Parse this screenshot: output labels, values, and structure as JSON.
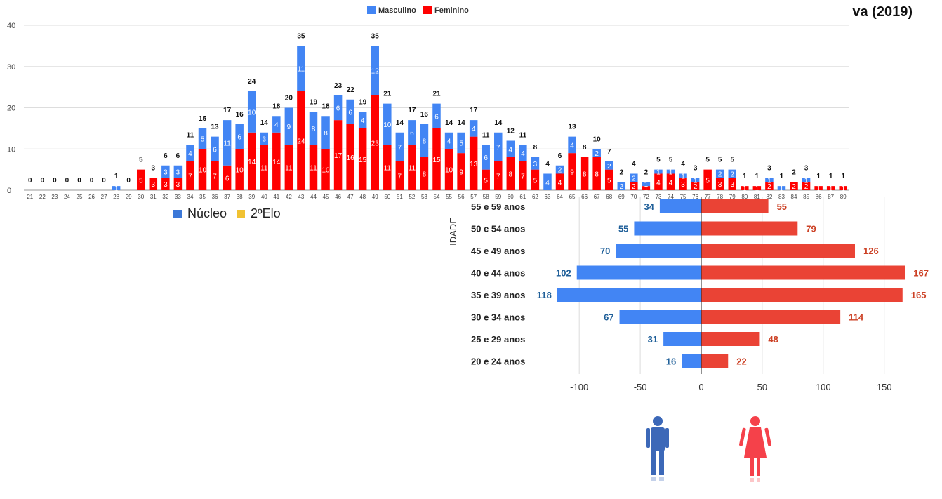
{
  "header_fragment": "va (2019)",
  "secondary_legend": {
    "items": [
      {
        "label": "Núcleo",
        "color": "#3c78d8"
      },
      {
        "label": "2ºElo",
        "color": "#f1c232"
      }
    ]
  },
  "colors": {
    "masculino": "#4285f4",
    "feminino": "#ff0000",
    "pyramid_m": "#4285f4",
    "pyramid_f": "#ea4335",
    "pyramid_m_label": "#1f5f99",
    "pyramid_f_label": "#cc4125"
  },
  "icons": [
    "male-person-icon",
    "female-person-icon"
  ],
  "chart_data": [
    {
      "type": "bar",
      "stacked": true,
      "legend_position": "top",
      "categories": [
        "21",
        "22",
        "23",
        "24",
        "25",
        "26",
        "27",
        "28",
        "29",
        "30",
        "31",
        "32",
        "33",
        "34",
        "35",
        "36",
        "37",
        "38",
        "39",
        "40",
        "41",
        "42",
        "43",
        "44",
        "45",
        "46",
        "47",
        "48",
        "49",
        "50",
        "51",
        "52",
        "53",
        "54",
        "55",
        "56",
        "57",
        "58",
        "59",
        "60",
        "61",
        "62",
        "63",
        "64",
        "65",
        "66",
        "67",
        "68",
        "69",
        "70",
        "72",
        "73",
        "74",
        "75",
        "76",
        "77",
        "78",
        "79",
        "80",
        "81",
        "82",
        "83",
        "84",
        "85",
        "86",
        "87",
        "89"
      ],
      "series": [
        {
          "name": "Feminino",
          "values": [
            0,
            0,
            0,
            0,
            0,
            0,
            0,
            0,
            0,
            5,
            3,
            3,
            3,
            7,
            10,
            7,
            6,
            10,
            14,
            11,
            14,
            11,
            24,
            11,
            10,
            17,
            16,
            15,
            23,
            11,
            7,
            11,
            8,
            15,
            10,
            9,
            13,
            5,
            7,
            8,
            7,
            5,
            0,
            4,
            9,
            8,
            8,
            5,
            0,
            2,
            1,
            4,
            4,
            3,
            2,
            5,
            3,
            3,
            1,
            1,
            2,
            0,
            2,
            2,
            1,
            1,
            1
          ]
        },
        {
          "name": "Masculino",
          "values": [
            0,
            0,
            0,
            0,
            0,
            0,
            0,
            1,
            0,
            0,
            0,
            3,
            3,
            4,
            5,
            6,
            11,
            6,
            10,
            3,
            4,
            9,
            11,
            8,
            8,
            6,
            6,
            4,
            12,
            10,
            7,
            6,
            8,
            6,
            4,
            5,
            4,
            6,
            7,
            4,
            4,
            3,
            4,
            2,
            4,
            0,
            2,
            2,
            2,
            2,
            1,
            1,
            1,
            1,
            1,
            0,
            2,
            2,
            0,
            0,
            1,
            1,
            0,
            1,
            0,
            0,
            0
          ]
        }
      ],
      "totals": [
        0,
        0,
        0,
        0,
        0,
        0,
        0,
        1,
        0,
        5,
        3,
        6,
        6,
        11,
        15,
        13,
        17,
        16,
        24,
        14,
        18,
        20,
        35,
        19,
        18,
        23,
        22,
        19,
        35,
        21,
        14,
        17,
        16,
        21,
        14,
        14,
        17,
        11,
        14,
        12,
        11,
        8,
        4,
        6,
        13,
        8,
        10,
        7,
        2,
        4,
        2,
        5,
        5,
        4,
        3,
        5,
        5,
        5,
        1,
        1,
        3,
        1,
        2,
        3,
        1,
        1,
        1
      ],
      "ylim": [
        0,
        40
      ],
      "yticks": [
        0,
        10,
        20,
        30,
        40
      ],
      "grid": true
    },
    {
      "type": "bar",
      "orientation": "horizontal",
      "ylabel": "IDADE",
      "categories": [
        "55 e 59 anos",
        "50 e 54 anos",
        "45 e 49 anos",
        "40 e 44 anos",
        "35 e 39 anos",
        "30 e 34 anos",
        "25 e 29 anos",
        "20 e 24 anos"
      ],
      "series": [
        {
          "name": "Masculino",
          "values": [
            34,
            55,
            70,
            102,
            118,
            67,
            31,
            16
          ]
        },
        {
          "name": "Feminino",
          "values": [
            55,
            79,
            126,
            167,
            165,
            114,
            48,
            22
          ]
        }
      ],
      "xlim": [
        -125,
        175
      ],
      "xticks": [
        -100,
        -50,
        0,
        50,
        100,
        150
      ],
      "xtick_labels": [
        "-100",
        "-50",
        "0",
        "50",
        "100",
        "150"
      ],
      "grid": true
    }
  ]
}
